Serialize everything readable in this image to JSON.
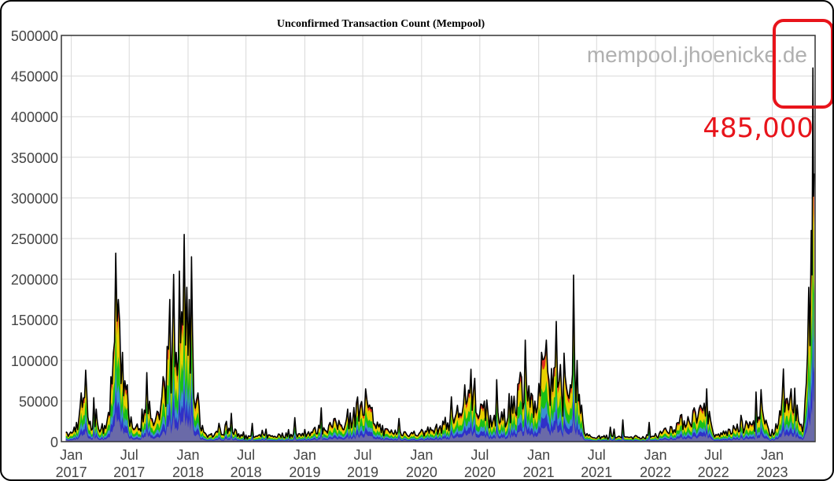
{
  "chart_data": {
    "type": "area",
    "title": "Unconfirmed Transaction Count (Mempool)",
    "watermark": "mempool.jhoenicke.de",
    "annotation": "485,000",
    "xlabel": "",
    "ylabel": "",
    "ylim": [
      0,
      500000
    ],
    "y_ticks": [
      "0",
      "50000",
      "100000",
      "150000",
      "200000",
      "250000",
      "300000",
      "350000",
      "400000",
      "450000",
      "500000"
    ],
    "x_ticks": [
      {
        "month": "Jan",
        "year": "2017"
      },
      {
        "month": "Jul",
        "year": "2017"
      },
      {
        "month": "Jan",
        "year": "2018"
      },
      {
        "month": "Jul",
        "year": "2018"
      },
      {
        "month": "Jan",
        "year": "2019"
      },
      {
        "month": "Jul",
        "year": "2019"
      },
      {
        "month": "Jan",
        "year": "2020"
      },
      {
        "month": "Jul",
        "year": "2020"
      },
      {
        "month": "Jan",
        "year": "2021"
      },
      {
        "month": "Jul",
        "year": "2021"
      },
      {
        "month": "Jan",
        "year": "2022"
      },
      {
        "month": "Jul",
        "year": "2022"
      },
      {
        "month": "Jan",
        "year": "2023"
      }
    ],
    "grid": true,
    "series": [
      {
        "values": [
          [
            "2016-12-15",
            12000
          ],
          [
            "2017-01-10",
            18000
          ],
          [
            "2017-02-01",
            60000
          ],
          [
            "2017-02-15",
            88000
          ],
          [
            "2017-03-01",
            25000
          ],
          [
            "2017-03-20",
            40000
          ],
          [
            "2017-04-15",
            20000
          ],
          [
            "2017-05-05",
            80000
          ],
          [
            "2017-05-20",
            232000
          ],
          [
            "2017-05-28",
            175000
          ],
          [
            "2017-06-10",
            110000
          ],
          [
            "2017-06-25",
            70000
          ],
          [
            "2017-07-15",
            15000
          ],
          [
            "2017-08-10",
            40000
          ],
          [
            "2017-08-25",
            85000
          ],
          [
            "2017-09-15",
            20000
          ],
          [
            "2017-10-15",
            80000
          ],
          [
            "2017-11-05",
            175000
          ],
          [
            "2017-11-25",
            110000
          ],
          [
            "2017-12-05",
            210000
          ],
          [
            "2017-12-12",
            160000
          ],
          [
            "2017-12-20",
            255000
          ],
          [
            "2017-12-28",
            190000
          ],
          [
            "2018-01-05",
            175000
          ],
          [
            "2018-01-15",
            135000
          ],
          [
            "2018-02-01",
            60000
          ],
          [
            "2018-02-15",
            20000
          ],
          [
            "2018-03-15",
            10000
          ],
          [
            "2018-05-01",
            25000
          ],
          [
            "2018-07-01",
            8000
          ],
          [
            "2019-01-01",
            15000
          ],
          [
            "2019-05-15",
            40000
          ],
          [
            "2019-06-15",
            55000
          ],
          [
            "2019-07-10",
            65000
          ],
          [
            "2019-09-01",
            20000
          ],
          [
            "2020-01-01",
            15000
          ],
          [
            "2020-03-15",
            30000
          ],
          [
            "2020-05-15",
            70000
          ],
          [
            "2020-06-15",
            78000
          ],
          [
            "2020-07-15",
            50000
          ],
          [
            "2020-09-15",
            40000
          ],
          [
            "2020-11-20",
            125000
          ],
          [
            "2020-12-20",
            50000
          ],
          [
            "2021-01-10",
            110000
          ],
          [
            "2021-01-25",
            125000
          ],
          [
            "2021-02-10",
            90000
          ],
          [
            "2021-02-25",
            148000
          ],
          [
            "2021-03-10",
            95000
          ],
          [
            "2021-03-25",
            80000
          ],
          [
            "2021-04-10",
            70000
          ],
          [
            "2021-04-20",
            205000
          ],
          [
            "2021-05-01",
            100000
          ],
          [
            "2021-05-15",
            45000
          ],
          [
            "2021-06-01",
            10000
          ],
          [
            "2021-08-01",
            8000
          ],
          [
            "2022-01-01",
            10000
          ],
          [
            "2022-06-10",
            65000
          ],
          [
            "2022-07-01",
            10000
          ],
          [
            "2022-12-01",
            40000
          ],
          [
            "2023-01-01",
            15000
          ],
          [
            "2023-02-01",
            55000
          ],
          [
            "2023-03-01",
            65000
          ],
          [
            "2023-03-20",
            45000
          ],
          [
            "2023-04-10",
            25000
          ],
          [
            "2023-04-25",
            190000
          ],
          [
            "2023-05-03",
            260000
          ],
          [
            "2023-05-08",
            460000
          ],
          [
            "2023-05-12",
            330000
          ]
        ]
      }
    ]
  }
}
